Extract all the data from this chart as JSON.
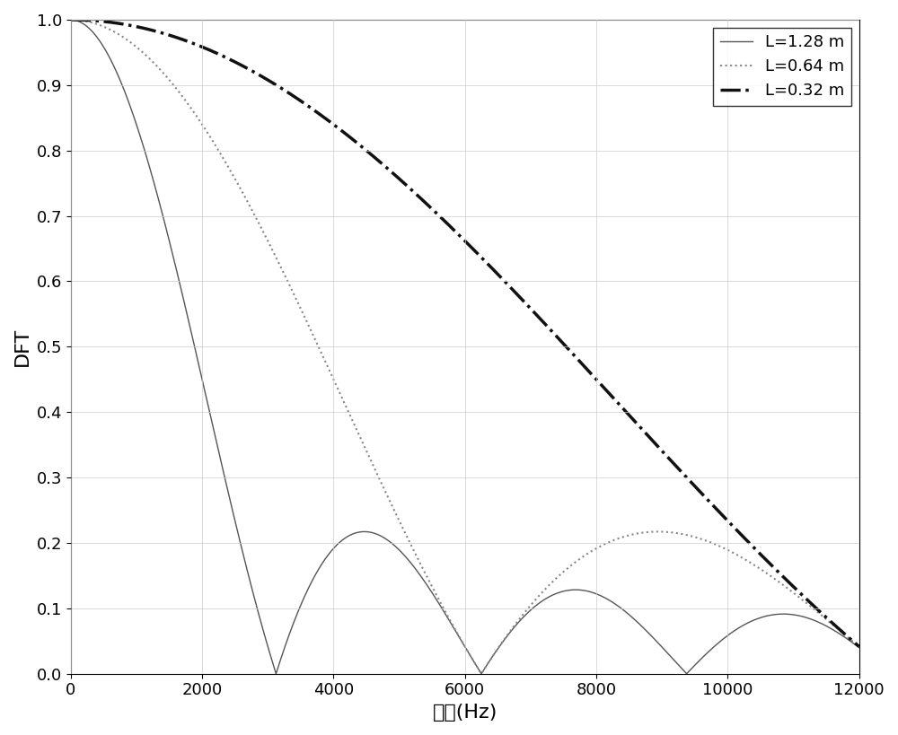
{
  "title": "",
  "xlabel": "频率(Hz)",
  "ylabel": "DFT",
  "xlim": [
    0,
    12000
  ],
  "ylim": [
    0,
    1
  ],
  "xticks": [
    0,
    2000,
    4000,
    6000,
    8000,
    10000,
    12000
  ],
  "yticks": [
    0,
    0.1,
    0.2,
    0.3,
    0.4,
    0.5,
    0.6,
    0.7,
    0.8,
    0.9,
    1
  ],
  "figsize": [
    10.0,
    8.19
  ],
  "dpi": 100,
  "line1": {
    "label": "L=1.28 m",
    "L": 1.28,
    "color": "#555555",
    "linestyle": "solid",
    "linewidth": 1.0
  },
  "line2": {
    "label": "L=0.64 m",
    "L": 0.64,
    "color": "#888888",
    "linestyle": "dotted",
    "linewidth": 1.5
  },
  "line3": {
    "label": "L=0.32 m",
    "L": 0.32,
    "color": "#111111",
    "linestyle": "dashdot",
    "linewidth": 2.5
  },
  "speed": 4000,
  "background_color": "#ffffff",
  "legend_fontsize": 13,
  "axis_label_fontsize": 16,
  "tick_fontsize": 13
}
